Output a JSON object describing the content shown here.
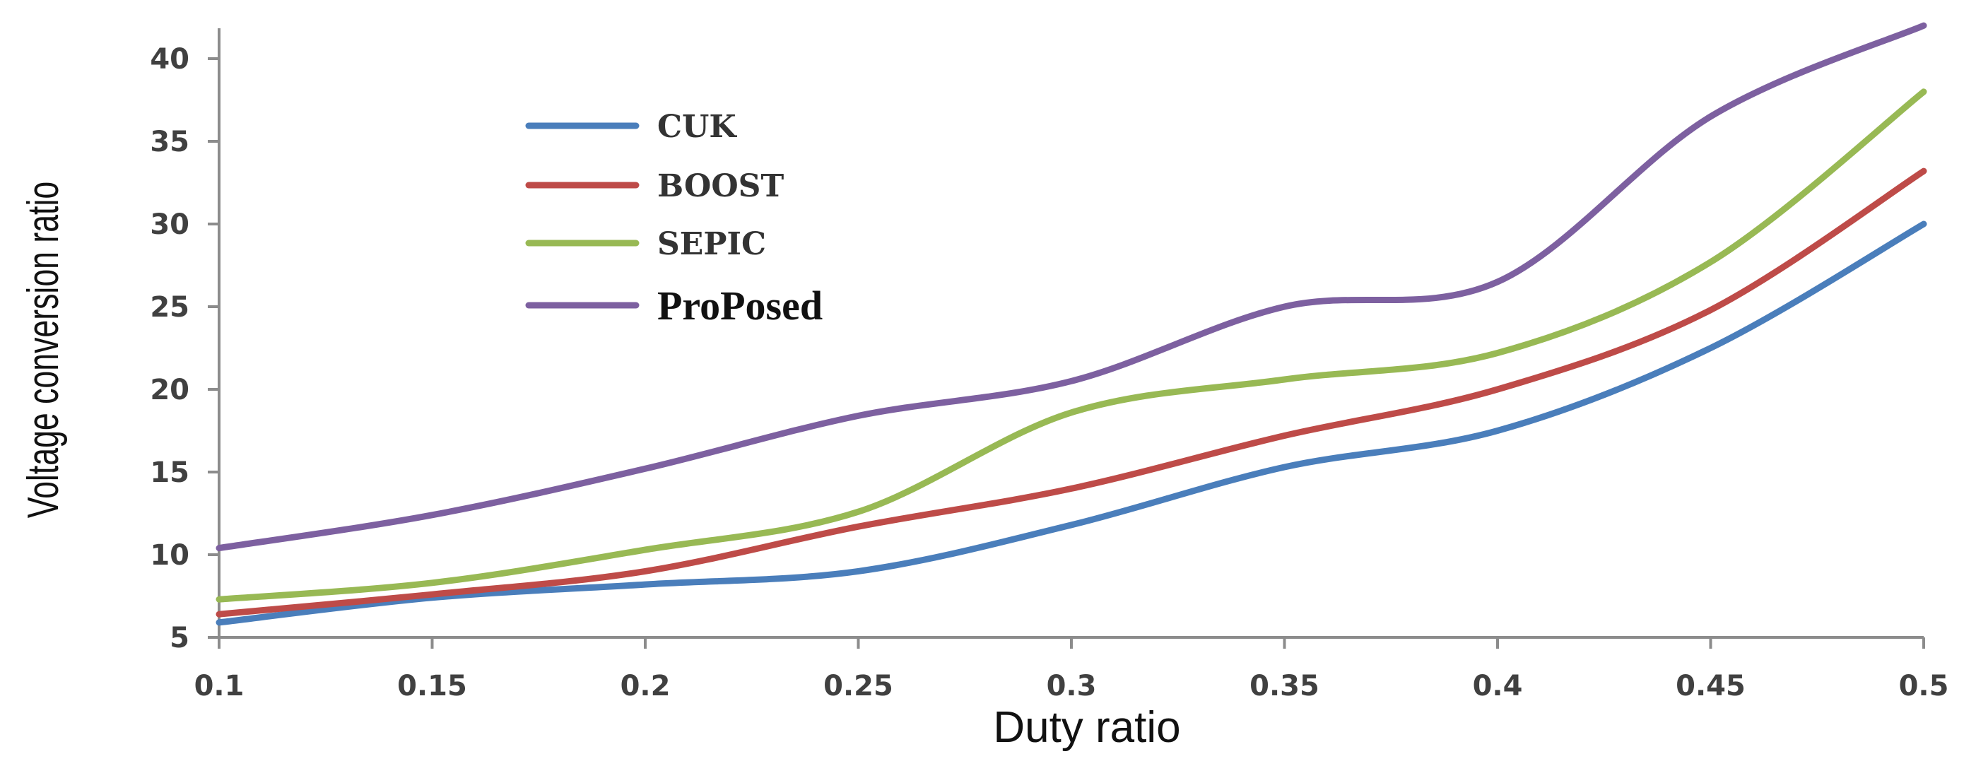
{
  "chart_data": {
    "type": "line",
    "xlabel": "Duty ratio",
    "ylabel": "Voltage conversion ratio",
    "x": [
      0.1,
      0.15,
      0.2,
      0.25,
      0.3,
      0.35,
      0.4,
      0.45,
      0.5
    ],
    "x_tick_labels": [
      "0.1",
      "0.15",
      "0.2",
      "0.25",
      "0.3",
      "0.35",
      "0.4",
      "0.45",
      "0.5"
    ],
    "y_ticks": [
      5,
      10,
      15,
      20,
      25,
      30,
      35,
      40
    ],
    "xlim": [
      0.1,
      0.5
    ],
    "ylim": [
      5,
      42
    ],
    "grid": false,
    "legend_position": "top-left",
    "series": [
      {
        "name": "CUK",
        "color": "#4a7ebb",
        "values": [
          5.9,
          7.4,
          8.2,
          9.0,
          11.8,
          15.3,
          17.5,
          22.5,
          30.0
        ]
      },
      {
        "name": "BOOST",
        "color": "#be4b48",
        "values": [
          6.4,
          7.6,
          9.0,
          11.7,
          14.0,
          17.2,
          20.0,
          24.8,
          33.2
        ]
      },
      {
        "name": "SEPIC",
        "color": "#98b954",
        "values": [
          7.3,
          8.3,
          10.3,
          12.6,
          18.6,
          20.6,
          22.2,
          27.7,
          38.0
        ]
      },
      {
        "name": "ProPosed",
        "color": "#7d60a0",
        "values": [
          10.4,
          12.4,
          15.2,
          18.4,
          20.5,
          25.0,
          26.5,
          36.5,
          42.0
        ]
      }
    ]
  }
}
